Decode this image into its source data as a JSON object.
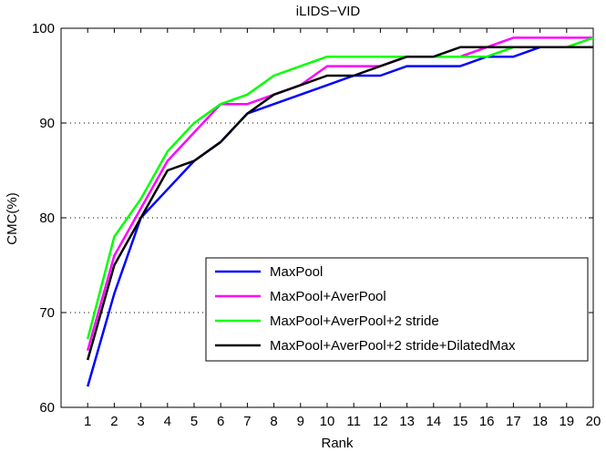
{
  "chart_data": {
    "type": "line",
    "title": "iLIDS−VID",
    "xlabel": "Rank",
    "ylabel": "CMC(%)",
    "x": [
      1,
      2,
      3,
      4,
      5,
      6,
      7,
      8,
      9,
      10,
      11,
      12,
      13,
      14,
      15,
      16,
      17,
      18,
      19,
      20
    ],
    "xlim": [
      0,
      20
    ],
    "ylim": [
      60,
      100
    ],
    "yticks": [
      60,
      70,
      80,
      90,
      100
    ],
    "grid": "horizontal dotted",
    "legend_position": "center-right",
    "series": [
      {
        "name": "MaxPool",
        "color": "#0000ff",
        "values": [
          62.2,
          72,
          80,
          83,
          86,
          88,
          91,
          92,
          93,
          94,
          95,
          95,
          96,
          96,
          96,
          97,
          97,
          98,
          98,
          98
        ]
      },
      {
        "name": "MaxPool+AverPool",
        "color": "#ff00ff",
        "values": [
          66,
          76,
          81,
          86,
          89,
          92,
          92,
          93,
          94,
          96,
          96,
          96,
          97,
          97,
          97,
          98,
          99,
          99,
          99,
          99
        ]
      },
      {
        "name": "MaxPool+AverPool+2 stride",
        "color": "#00ff00",
        "values": [
          67.2,
          78,
          82,
          87,
          90,
          92,
          93,
          95,
          96,
          97,
          97,
          97,
          97,
          97,
          97,
          97,
          98,
          98,
          98,
          99
        ]
      },
      {
        "name": "MaxPool+AverPool+2 stride+DilatedMax",
        "color": "#000000",
        "values": [
          65,
          75,
          80,
          85,
          86,
          88,
          91,
          93,
          94,
          95,
          95,
          96,
          97,
          97,
          98,
          98,
          98,
          98,
          98,
          98
        ]
      }
    ]
  }
}
